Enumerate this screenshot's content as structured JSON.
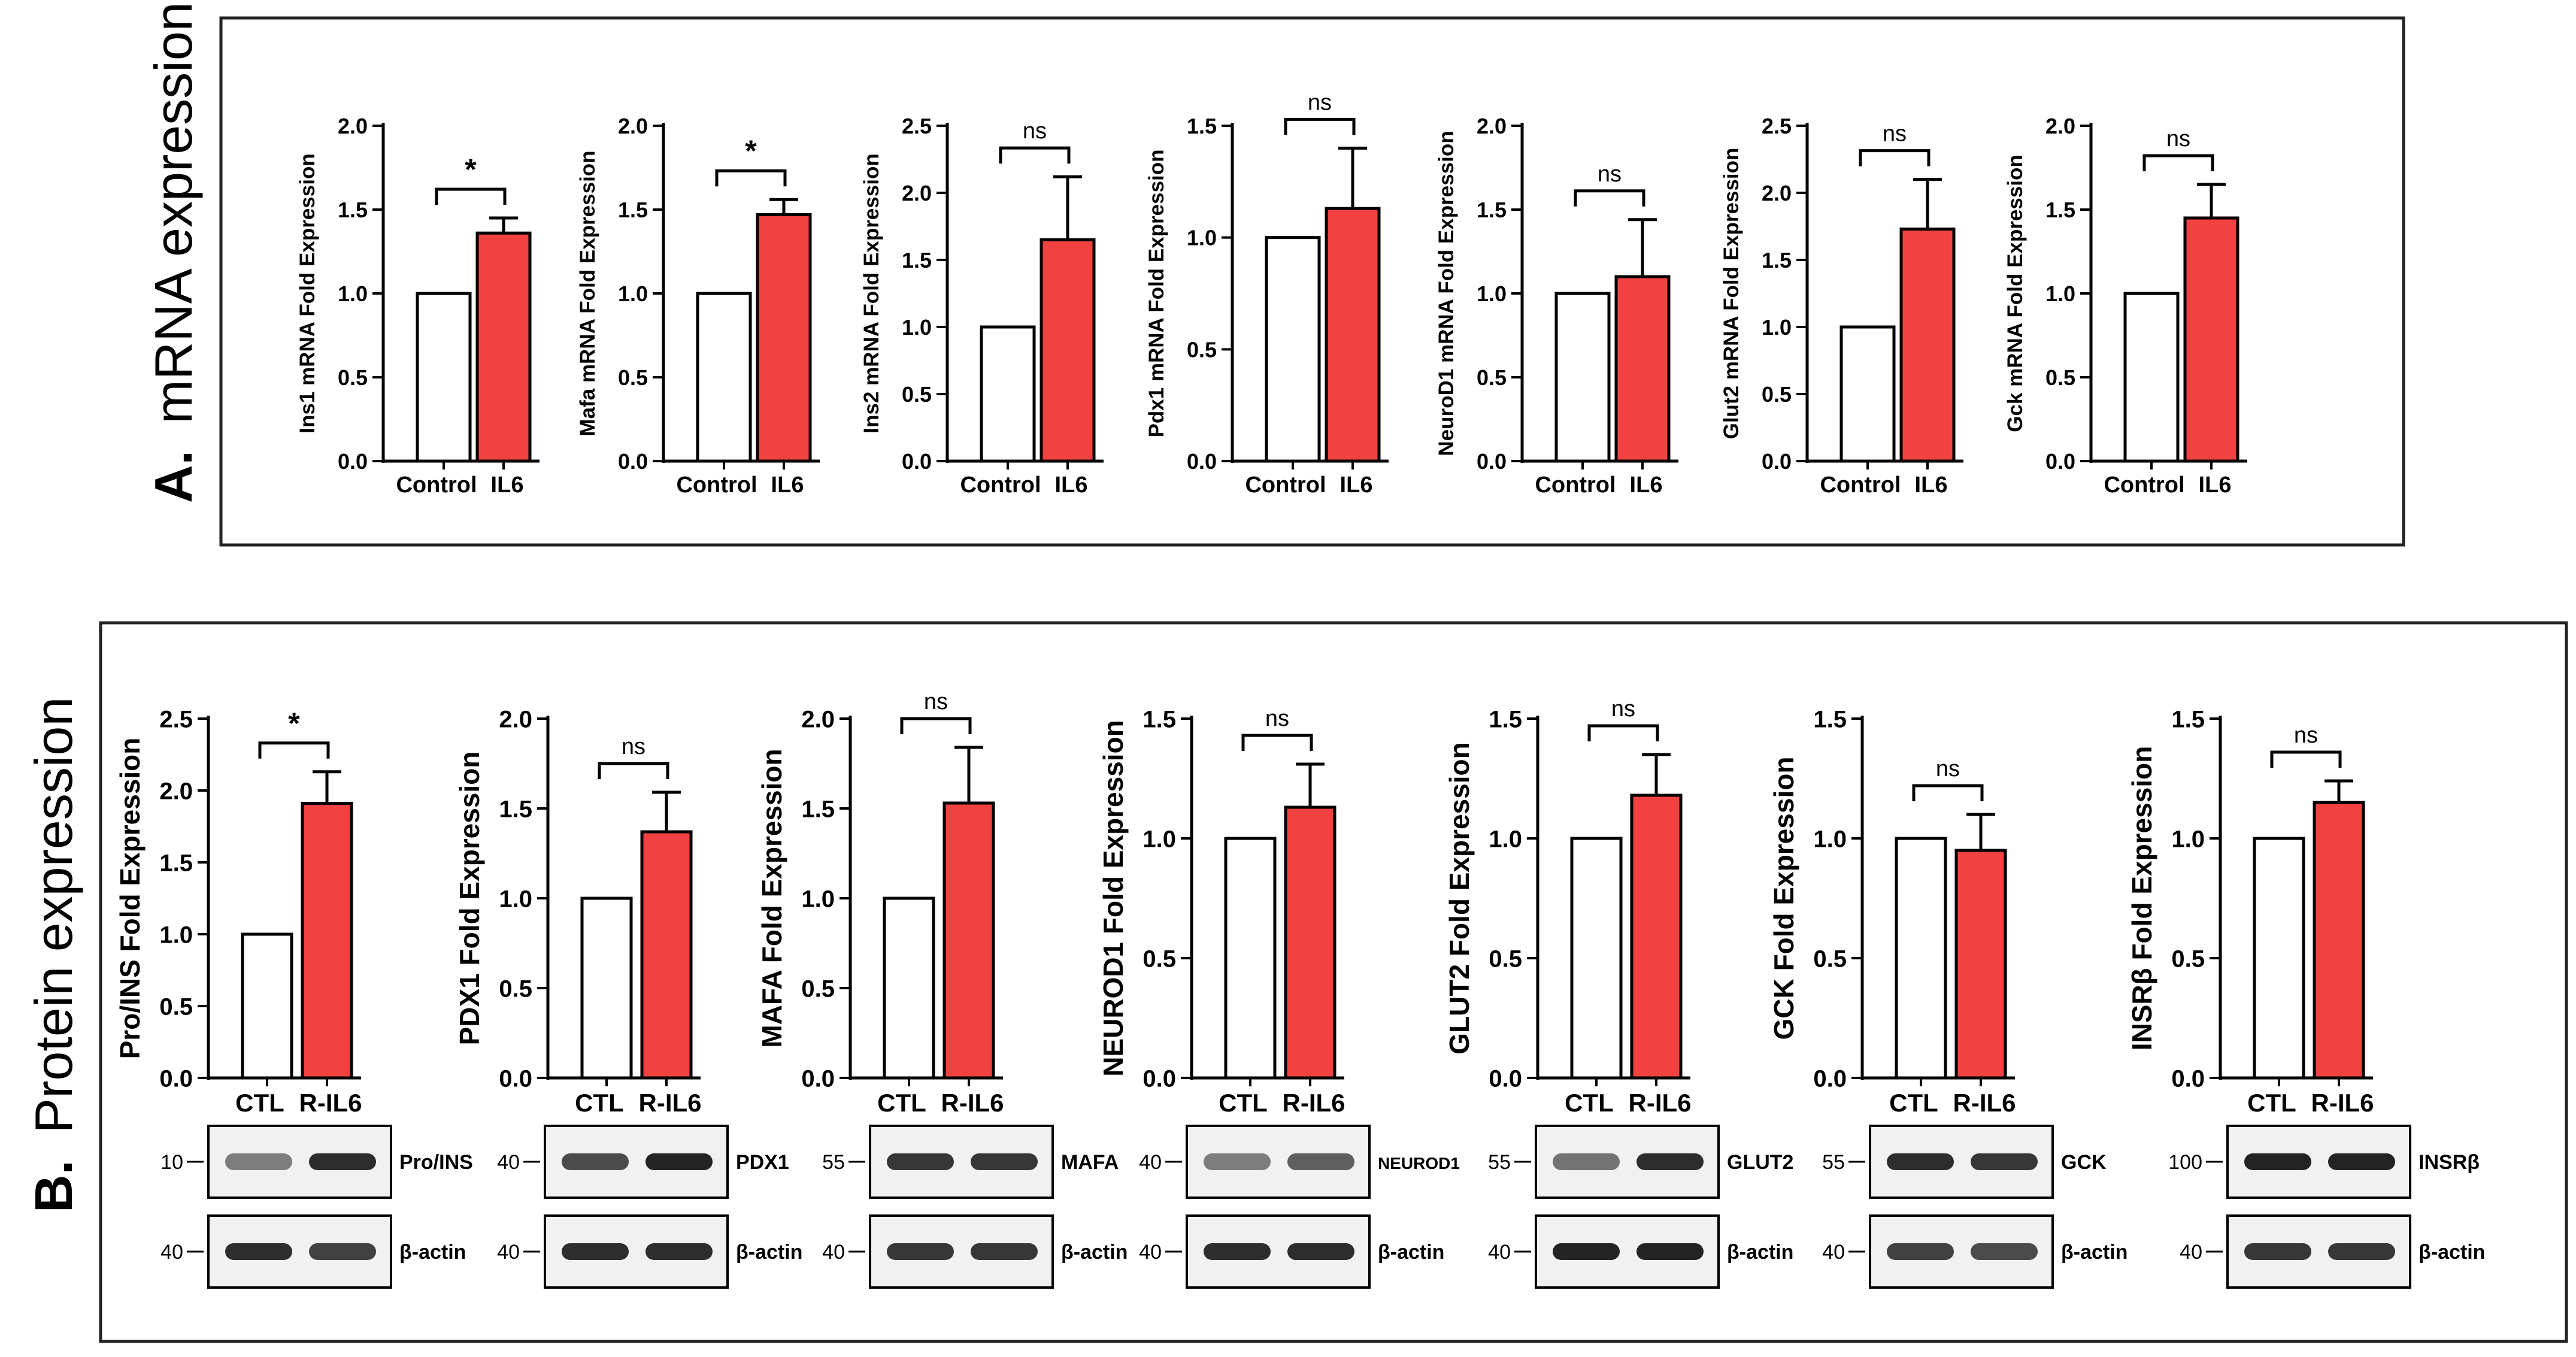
{
  "figure": {
    "section_a": {
      "letter": "A.",
      "title": "mRNA expression"
    },
    "section_b": {
      "letter": "B.",
      "title": "Protein expression"
    }
  },
  "colors": {
    "control_bar": "#ffffff",
    "treated_bar": "#f24141",
    "axis": "#000000",
    "frame": "#222222"
  },
  "chart_data": [
    {
      "panel": "A",
      "type": "bar",
      "ylabel": "Ins1 mRNA Fold Expression",
      "categories": [
        "Control",
        "IL6"
      ],
      "values": [
        1.0,
        1.36
      ],
      "errors": [
        0,
        0.09
      ],
      "ylim": [
        0,
        2.0
      ],
      "yticks": [
        "0.0",
        "0.5",
        "1.0",
        "1.5",
        "2.0"
      ],
      "significance": "*"
    },
    {
      "panel": "A",
      "type": "bar",
      "ylabel": "Mafa mRNA Fold Expression",
      "categories": [
        "Control",
        "IL6"
      ],
      "values": [
        1.0,
        1.47
      ],
      "errors": [
        0,
        0.09
      ],
      "ylim": [
        0,
        2.0
      ],
      "yticks": [
        "0.0",
        "0.5",
        "1.0",
        "1.5",
        "2.0"
      ],
      "significance": "*"
    },
    {
      "panel": "A",
      "type": "bar",
      "ylabel": "Ins2 mRNA Fold Expression",
      "categories": [
        "Control",
        "IL6"
      ],
      "values": [
        1.0,
        1.65
      ],
      "errors": [
        0,
        0.47
      ],
      "ylim": [
        0,
        2.5
      ],
      "yticks": [
        "0.0",
        "0.5",
        "1.0",
        "1.5",
        "2.0",
        "2.5"
      ],
      "significance": "ns"
    },
    {
      "panel": "A",
      "type": "bar",
      "ylabel": "Pdx1 mRNA Fold Expression",
      "categories": [
        "Control",
        "IL6"
      ],
      "values": [
        1.0,
        1.13
      ],
      "errors": [
        0,
        0.27
      ],
      "ylim": [
        0,
        1.5
      ],
      "yticks": [
        "0.0",
        "0.5",
        "1.0",
        "1.5"
      ],
      "significance": "ns"
    },
    {
      "panel": "A",
      "type": "bar",
      "ylabel": "NeuroD1 mRNA Fold Expression",
      "categories": [
        "Control",
        "IL6"
      ],
      "values": [
        1.0,
        1.1
      ],
      "errors": [
        0,
        0.34
      ],
      "ylim": [
        0,
        2.0
      ],
      "yticks": [
        "0.0",
        "0.5",
        "1.0",
        "1.5",
        "2.0"
      ],
      "significance": "ns"
    },
    {
      "panel": "A",
      "type": "bar",
      "ylabel": "Glut2 mRNA Fold Expression",
      "categories": [
        "Control",
        "IL6"
      ],
      "values": [
        1.0,
        1.73
      ],
      "errors": [
        0,
        0.37
      ],
      "ylim": [
        0,
        2.5
      ],
      "yticks": [
        "0.0",
        "0.5",
        "1.0",
        "1.5",
        "2.0",
        "2.5"
      ],
      "significance": "ns"
    },
    {
      "panel": "A",
      "type": "bar",
      "ylabel": "Gck mRNA Fold Expression",
      "categories": [
        "Control",
        "IL6"
      ],
      "values": [
        1.0,
        1.45
      ],
      "errors": [
        0,
        0.2
      ],
      "ylim": [
        0,
        2.0
      ],
      "yticks": [
        "0.0",
        "0.5",
        "1.0",
        "1.5",
        "2.0"
      ],
      "significance": "ns"
    },
    {
      "panel": "B",
      "type": "bar",
      "ylabel": "Pro/INS Fold Expression",
      "categories": [
        "CTL",
        "R-IL6"
      ],
      "values": [
        1.0,
        1.91
      ],
      "errors": [
        0,
        0.22
      ],
      "ylim": [
        0,
        2.5
      ],
      "yticks": [
        "0.0",
        "0.5",
        "1.0",
        "1.5",
        "2.0",
        "2.5"
      ],
      "significance": "*"
    },
    {
      "panel": "B",
      "type": "bar",
      "ylabel": "PDX1 Fold Expression",
      "categories": [
        "CTL",
        "R-IL6"
      ],
      "values": [
        1.0,
        1.37
      ],
      "errors": [
        0,
        0.22
      ],
      "ylim": [
        0,
        2.0
      ],
      "yticks": [
        "0.0",
        "0.5",
        "1.0",
        "1.5",
        "2.0"
      ],
      "significance": "ns"
    },
    {
      "panel": "B",
      "type": "bar",
      "ylabel": "MAFA Fold Expression",
      "categories": [
        "CTL",
        "R-IL6"
      ],
      "values": [
        1.0,
        1.53
      ],
      "errors": [
        0,
        0.31
      ],
      "ylim": [
        0,
        2.0
      ],
      "yticks": [
        "0.0",
        "0.5",
        "1.0",
        "1.5",
        "2.0"
      ],
      "significance": "ns"
    },
    {
      "panel": "B",
      "type": "bar",
      "ylabel": "NEUROD1 Fold Expression",
      "categories": [
        "CTL",
        "R-IL6"
      ],
      "values": [
        1.0,
        1.13
      ],
      "errors": [
        0,
        0.18
      ],
      "ylim": [
        0,
        1.5
      ],
      "yticks": [
        "0.0",
        "0.5",
        "1.0",
        "1.5"
      ],
      "significance": "ns"
    },
    {
      "panel": "B",
      "type": "bar",
      "ylabel": "GLUT2 Fold Expression",
      "categories": [
        "CTL",
        "R-IL6"
      ],
      "values": [
        1.0,
        1.18
      ],
      "errors": [
        0,
        0.17
      ],
      "ylim": [
        0,
        1.5
      ],
      "yticks": [
        "0.0",
        "0.5",
        "1.0",
        "1.5"
      ],
      "significance": "ns"
    },
    {
      "panel": "B",
      "type": "bar",
      "ylabel": "GCK Fold Expression",
      "categories": [
        "CTL",
        "R-IL6"
      ],
      "values": [
        1.0,
        0.95
      ],
      "errors": [
        0,
        0.15
      ],
      "ylim": [
        0,
        1.5
      ],
      "yticks": [
        "0.0",
        "0.5",
        "1.0",
        "1.5"
      ],
      "significance": "ns"
    },
    {
      "panel": "B",
      "type": "bar",
      "ylabel": "INSRβ Fold Expression",
      "categories": [
        "CTL",
        "R-IL6"
      ],
      "values": [
        1.0,
        1.15
      ],
      "errors": [
        0,
        0.09
      ],
      "ylim": [
        0,
        1.5
      ],
      "yticks": [
        "0.0",
        "0.5",
        "1.0",
        "1.5"
      ],
      "significance": "ns"
    }
  ],
  "blots": [
    {
      "top": {
        "marker": "10",
        "label": "Pro/INS",
        "intensity": [
          0.55,
          0.95
        ]
      },
      "bottom": {
        "marker": "40",
        "label": "β-actin",
        "intensity": [
          0.95,
          0.85
        ]
      }
    },
    {
      "top": {
        "marker": "40",
        "label": "PDX1",
        "intensity": [
          0.8,
          1.0
        ]
      },
      "bottom": {
        "marker": "40",
        "label": "β-actin",
        "intensity": [
          0.95,
          0.95
        ]
      }
    },
    {
      "top": {
        "marker": "55",
        "label": "MAFA",
        "intensity": [
          0.9,
          0.9
        ]
      },
      "bottom": {
        "marker": "40",
        "label": "β-actin",
        "intensity": [
          0.9,
          0.9
        ]
      }
    },
    {
      "top": {
        "marker": "40",
        "label": "NEUROD1",
        "intensity": [
          0.55,
          0.7
        ]
      },
      "bottom": {
        "marker": "40",
        "label": "β-actin",
        "intensity": [
          0.95,
          0.95
        ]
      }
    },
    {
      "top": {
        "marker": "55",
        "label": "GLUT2",
        "intensity": [
          0.6,
          0.95
        ]
      },
      "bottom": {
        "marker": "40",
        "label": "β-actin",
        "intensity": [
          1.0,
          1.0
        ]
      }
    },
    {
      "top": {
        "marker": "55",
        "label": "GCK",
        "intensity": [
          0.95,
          0.9
        ]
      },
      "bottom": {
        "marker": "40",
        "label": "β-actin",
        "intensity": [
          0.85,
          0.8
        ]
      }
    },
    {
      "top": {
        "marker": "100",
        "label": "INSRβ",
        "intensity": [
          1.0,
          1.0
        ]
      },
      "bottom": {
        "marker": "40",
        "label": "β-actin",
        "intensity": [
          0.9,
          0.9
        ]
      }
    }
  ]
}
